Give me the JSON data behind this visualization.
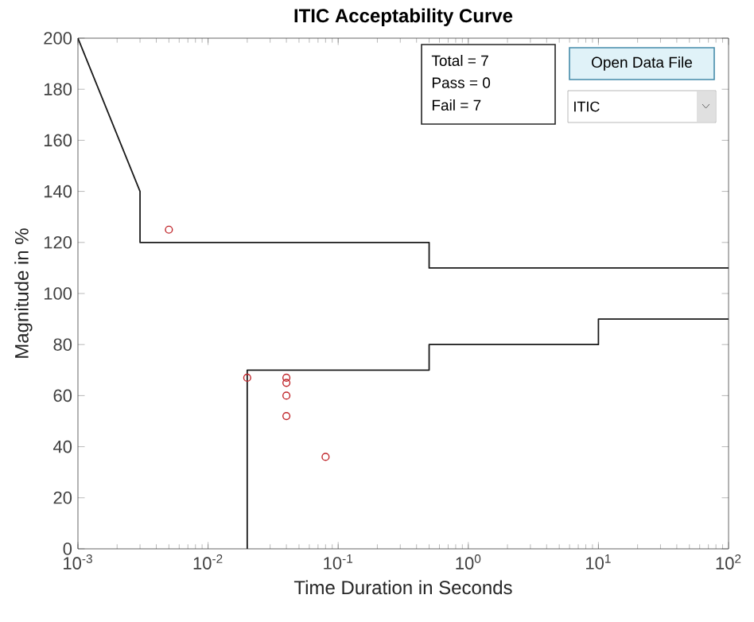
{
  "chart_data": {
    "type": "line",
    "title": "ITIC Acceptability Curve",
    "xlabel": "Time Duration in Seconds",
    "ylabel": "Magnitude in %",
    "log": "x",
    "xlim": [
      0.001,
      100
    ],
    "ylim": [
      0,
      200
    ],
    "xticks": [
      {
        "value": 0.001,
        "label": "10$^{-3}$"
      },
      {
        "value": 0.01,
        "label": "10$^{-2}$"
      },
      {
        "value": 0.1,
        "label": "10$^{-1}$"
      },
      {
        "value": 1,
        "label": "10$^{0}$"
      },
      {
        "value": 10,
        "label": "10$^{1}$"
      },
      {
        "value": 100,
        "label": "10$^{2}$"
      }
    ],
    "yticks": [
      0,
      20,
      40,
      60,
      80,
      100,
      120,
      140,
      160,
      180,
      200
    ],
    "series": [
      {
        "color": "#1a1a1a",
        "x": [
          0.001,
          0.003,
          0.003,
          0.5,
          0.5,
          100
        ],
        "values": [
          200,
          140,
          120,
          120,
          110,
          110
        ]
      },
      {
        "color": "#1a1a1a",
        "x": [
          0.02,
          0.02,
          0.5,
          0.5,
          10,
          10,
          100
        ],
        "values": [
          0,
          70,
          70,
          80,
          80,
          90,
          90
        ]
      },
      {
        "type": "scatter",
        "color": "#c0262b",
        "marker": "circle",
        "x": [
          0.005,
          0.02,
          0.04,
          0.04,
          0.04,
          0.04,
          0.08
        ],
        "values": [
          125,
          67,
          67,
          65,
          60,
          52,
          36
        ]
      }
    ],
    "annotations": [
      "Total = 7",
      "Pass = 0",
      "Fail = 7",
      "Open Data File",
      "ITIC"
    ]
  }
}
